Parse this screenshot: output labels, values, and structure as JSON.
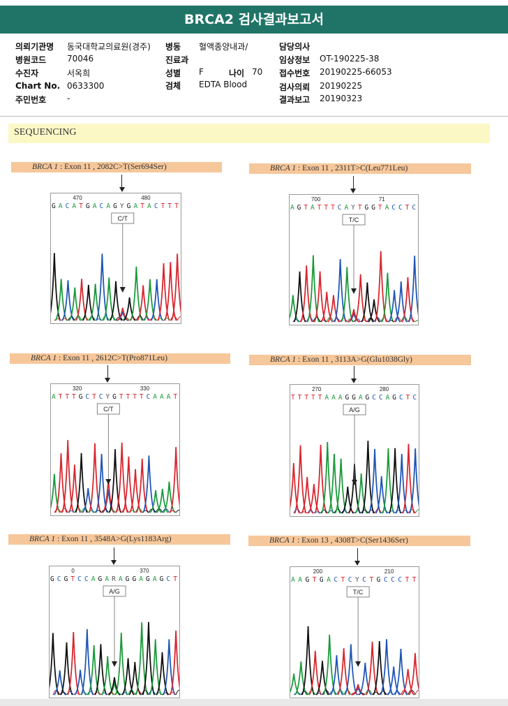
{
  "title": "BRCA2 검사결과보고서",
  "info": {
    "left": [
      {
        "label": "의뢰기관명",
        "value": "동국대학교의료원(경주)"
      },
      {
        "label": "병원코드",
        "value": "70046"
      },
      {
        "label": "수진자",
        "value": "서옥희"
      },
      {
        "label": "Chart No.",
        "value": "0633300"
      },
      {
        "label": "주민번호",
        "value": "-"
      }
    ],
    "middle": [
      {
        "label": "병동",
        "value": "혈액종양내과/"
      },
      {
        "label": "진료과",
        "value": ""
      },
      {
        "label": "성별",
        "value": "F"
      },
      {
        "label": "검체",
        "value": "EDTA Blood"
      }
    ],
    "age": {
      "label": "나이",
      "value": "70"
    },
    "right": [
      {
        "label": "담당의사",
        "value": ""
      },
      {
        "label": "임상정보",
        "value": "OT-190225-38"
      },
      {
        "label": "접수번호",
        "value": "20190225-66053"
      },
      {
        "label": "검사의뢰",
        "value": "20190225"
      },
      {
        "label": "결과보고",
        "value": "20190323"
      }
    ]
  },
  "section": "SEQUENCING",
  "panels": [
    {
      "gene": "BRCA 1",
      "variant": ": Exon 11 , 2082C>T(Ser694Ser)",
      "pos1": "470",
      "pos2": "480",
      "seq": "GACATGACAGYGATACTTT",
      "call": "C/T"
    },
    {
      "gene": "BRCA 1",
      "variant": ": Exon 11 , 2311T>C(Leu771Leu)",
      "pos1": "700",
      "pos2": "71",
      "seq": "AGTATTTCAYTGGTACCTC",
      "call": "T/C"
    },
    {
      "gene": "BRCA 1",
      "variant": ": Exon 11 , 2612C>T(Pro871Leu)",
      "pos1": "320",
      "pos2": "330",
      "seq": "ATTTGCTCYGTTTTCAAAT",
      "call": "C/T"
    },
    {
      "gene": "BRCA 1",
      "variant": ": Exon 11 , 3113A>G(Glu1038Gly)",
      "pos1": "270",
      "pos2": "280",
      "seq": "TTTTTAAAGGAGCCAGCTC",
      "call": "A/G"
    },
    {
      "gene": "BRCA 1",
      "variant": ": Exon 11 , 3548A>G(Lys1183Arg)",
      "pos1": "0",
      "pos2": "370",
      "seq": "GCGTCCAGARAGGAGAGCT",
      "call": "A/G"
    },
    {
      "gene": "BRCA 1",
      "variant": ": Exon 13 , 4308T>C(Ser1436Ser)",
      "pos1": "200",
      "pos2": "210",
      "seq": "AAGTGACTCYCTGCCCTT",
      "call": "T/C"
    }
  ],
  "colors": {
    "A": "#1a9a3a",
    "C": "#1f56b5",
    "G": "#111111",
    "T": "#d8262e",
    "Y": "#555555",
    "R": "#555555"
  }
}
